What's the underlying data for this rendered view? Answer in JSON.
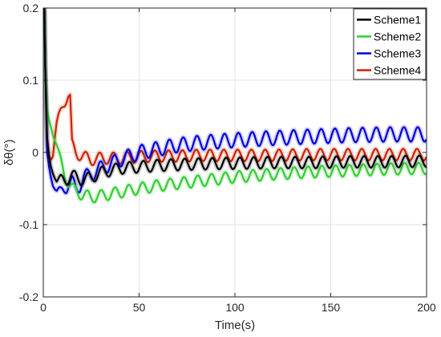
{
  "chart_data": {
    "type": "line",
    "title": "",
    "xlabel": "Time(s)",
    "ylabel": "δθ(°)",
    "xlim": [
      0,
      200
    ],
    "ylim": [
      -0.2,
      0.2
    ],
    "x_ticks": [
      0,
      50,
      100,
      150,
      200
    ],
    "y_ticks": [
      -0.2,
      -0.1,
      0,
      0.1,
      0.2
    ],
    "x_tick_labels": [
      "0",
      "50",
      "100",
      "150",
      "200"
    ],
    "y_tick_labels": [
      "-0.2",
      "-0.1",
      "0",
      "0.1",
      "0.2"
    ],
    "grid": true,
    "legend_position": "top-right",
    "oscillation_period": 7.2,
    "series": [
      {
        "name": "Scheme1",
        "color": "#000000",
        "oscillation_amplitude": 0.008,
        "x": [
          0,
          0.6,
          1,
          2,
          3,
          4,
          5,
          7,
          9,
          11,
          13,
          15,
          20,
          25,
          30,
          40,
          50,
          60,
          70,
          80,
          100,
          120,
          140,
          160,
          180,
          200
        ],
        "y": [
          0.2,
          0.2,
          0.12,
          0.02,
          -0.005,
          -0.02,
          -0.028,
          -0.04,
          -0.036,
          -0.038,
          -0.036,
          -0.032,
          -0.038,
          -0.035,
          -0.028,
          -0.022,
          -0.02,
          -0.018,
          -0.017,
          -0.016,
          -0.015,
          -0.014,
          -0.014,
          -0.013,
          -0.013,
          -0.012
        ]
      },
      {
        "name": "Scheme2",
        "color": "#33cc33",
        "oscillation_amplitude": 0.008,
        "x": [
          0,
          0.6,
          1,
          2,
          3,
          4,
          5,
          7,
          9,
          11,
          13,
          15,
          20,
          25,
          30,
          40,
          50,
          60,
          70,
          80,
          100,
          120,
          140,
          160,
          180,
          200
        ],
        "y": [
          0.2,
          0.2,
          0.12,
          0.06,
          0.045,
          0.035,
          0.025,
          0.01,
          -0.01,
          -0.03,
          -0.042,
          -0.05,
          -0.058,
          -0.062,
          -0.06,
          -0.055,
          -0.05,
          -0.046,
          -0.043,
          -0.04,
          -0.034,
          -0.03,
          -0.027,
          -0.025,
          -0.023,
          -0.022
        ]
      },
      {
        "name": "Scheme3",
        "color": "#0000dd",
        "oscillation_amplitude": 0.01,
        "x": [
          0,
          0.6,
          1,
          2,
          3,
          4,
          5,
          7,
          9,
          11,
          13,
          15,
          17,
          19,
          21,
          25,
          30,
          40,
          50,
          60,
          70,
          80,
          100,
          120,
          140,
          160,
          180,
          200
        ],
        "y": [
          0.2,
          0.2,
          0.12,
          0.0,
          -0.02,
          -0.035,
          -0.045,
          -0.055,
          -0.053,
          -0.048,
          -0.045,
          -0.042,
          -0.05,
          -0.045,
          -0.035,
          -0.03,
          -0.022,
          -0.01,
          0.0,
          0.005,
          0.01,
          0.013,
          0.017,
          0.02,
          0.022,
          0.024,
          0.025,
          0.025
        ]
      },
      {
        "name": "Scheme4",
        "color": "#cc2200",
        "oscillation_amplitude": 0.008,
        "x": [
          0,
          0.6,
          1,
          2,
          3,
          4,
          5,
          6,
          7,
          8,
          9,
          10,
          11,
          12,
          13,
          14,
          15,
          17,
          20,
          25,
          30,
          40,
          50,
          60,
          70,
          80,
          100,
          120,
          140,
          160,
          180,
          200
        ],
        "y": [
          0.2,
          0.2,
          0.12,
          0.01,
          -0.005,
          -0.01,
          -0.005,
          0.02,
          0.04,
          0.05,
          0.058,
          0.065,
          0.07,
          0.075,
          0.078,
          0.075,
          0.01,
          0.0,
          -0.005,
          -0.01,
          -0.008,
          -0.008,
          -0.006,
          -0.005,
          -0.005,
          -0.004,
          -0.004,
          -0.004,
          -0.003,
          -0.003,
          -0.003,
          -0.003
        ]
      }
    ]
  }
}
